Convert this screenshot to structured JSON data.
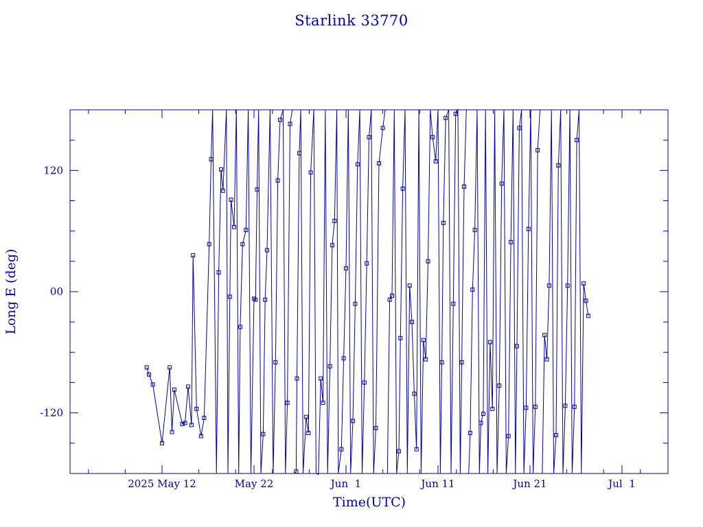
{
  "chart_data": {
    "type": "line",
    "title": "Starlink 33770",
    "xlabel": "Time(UTC)",
    "ylabel": "Long E (deg)",
    "color": "#0000a0",
    "marker": "square",
    "grid": false,
    "xlim": [
      "2025-05-02",
      "2025-07-06"
    ],
    "ylim": [
      -180,
      180
    ],
    "xticks": [
      {
        "date": "2025-05-12",
        "label": "2025 May 12"
      },
      {
        "date": "2025-05-22",
        "label": "May 22"
      },
      {
        "date": "2025-06-01",
        "label": "Jun  1"
      },
      {
        "date": "2025-06-11",
        "label": "Jun 11"
      },
      {
        "date": "2025-06-21",
        "label": "Jun 21"
      },
      {
        "date": "2025-07-01",
        "label": "Jul  1"
      }
    ],
    "yticks": [
      {
        "value": 120,
        "label": "120"
      },
      {
        "value": 0,
        "label": "00"
      },
      {
        "value": -120,
        "label": "-120"
      }
    ],
    "series": [
      {
        "points": [
          [
            "2025-05-10T08:00",
            -75
          ],
          [
            "2025-05-10T14:00",
            -82
          ],
          [
            "2025-05-11T00:00",
            -92
          ],
          [
            "2025-05-12T00:00",
            -150
          ],
          [
            "2025-05-12T20:00",
            -75
          ],
          [
            "2025-05-13T02:00",
            -139
          ],
          [
            "2025-05-13T08:00",
            -97
          ],
          [
            "2025-05-14T05:00",
            -131
          ],
          [
            "2025-05-14T12:00",
            -130
          ],
          [
            "2025-05-14T20:00",
            -94
          ],
          [
            "2025-05-15T05:00",
            -132
          ],
          [
            "2025-05-15T09:00",
            36
          ],
          [
            "2025-05-15T18:00",
            -116
          ],
          [
            "2025-05-16T06:00",
            -143
          ],
          [
            "2025-05-16T14:00",
            -125
          ],
          [
            "2025-05-17T03:00",
            47
          ],
          [
            "2025-05-17T08:00",
            131
          ],
          [
            "2025-05-17T12:00",
            180
          ],
          [
            "2025-05-17T22:00",
            -180
          ],
          [
            "2025-05-18T04:00",
            19
          ],
          [
            "2025-05-18T10:00",
            121
          ],
          [
            "2025-05-18T15:00",
            100
          ],
          [
            "2025-05-19T00:00",
            180
          ],
          [
            "2025-05-19T04:00",
            -180
          ],
          [
            "2025-05-19T09:00",
            -5
          ],
          [
            "2025-05-19T12:00",
            91
          ],
          [
            "2025-05-19T20:00",
            64
          ],
          [
            "2025-05-20T02:00",
            180
          ],
          [
            "2025-05-20T08:00",
            -180
          ],
          [
            "2025-05-20T12:00",
            -35
          ],
          [
            "2025-05-20T18:00",
            47
          ],
          [
            "2025-05-21T03:00",
            61
          ],
          [
            "2025-05-21T09:00",
            180
          ],
          [
            "2025-05-21T16:00",
            -180
          ],
          [
            "2025-05-22T00:00",
            -7
          ],
          [
            "2025-05-22T04:00",
            -8
          ],
          [
            "2025-05-22T08:00",
            101
          ],
          [
            "2025-05-22T12:00",
            180
          ],
          [
            "2025-05-22T18:00",
            -180
          ],
          [
            "2025-05-23T00:00",
            -141
          ],
          [
            "2025-05-23T05:00",
            -8
          ],
          [
            "2025-05-23T10:00",
            41
          ],
          [
            "2025-05-23T18:00",
            180
          ],
          [
            "2025-05-24T02:00",
            -180
          ],
          [
            "2025-05-24T08:00",
            -70
          ],
          [
            "2025-05-24T14:00",
            110
          ],
          [
            "2025-05-24T20:00",
            170
          ],
          [
            "2025-05-25T04:00",
            180
          ],
          [
            "2025-05-25T10:00",
            -180
          ],
          [
            "2025-05-25T15:00",
            -110
          ],
          [
            "2025-05-25T22:00",
            166
          ],
          [
            "2025-05-26T04:00",
            180
          ]
        ]
      },
      {
        "points": [
          [
            "2025-05-26T08:00",
            -180
          ],
          [
            "2025-05-26T14:00",
            -178
          ],
          [
            "2025-05-26T16:00",
            -86
          ],
          [
            "2025-05-26T22:00",
            137
          ],
          [
            "2025-05-27T02:00",
            180
          ],
          [
            "2025-05-27T08:00",
            -180
          ],
          [
            "2025-05-27T16:00",
            -124
          ],
          [
            "2025-05-27T22:00",
            -140
          ],
          [
            "2025-05-28T04:00",
            118
          ],
          [
            "2025-05-28T12:00",
            180
          ],
          [
            "2025-05-28T18:00",
            -180
          ],
          [
            "2025-05-29T00:00",
            -181
          ],
          [
            "2025-05-29T06:00",
            -86
          ],
          [
            "2025-05-29T12:00",
            -110
          ],
          [
            "2025-05-29T18:00",
            180
          ],
          [
            "2025-05-30T00:00",
            -180
          ],
          [
            "2025-05-30T06:00",
            -74
          ],
          [
            "2025-05-30T12:00",
            46
          ],
          [
            "2025-05-30T18:00",
            70
          ],
          [
            "2025-05-31T00:00",
            180
          ],
          [
            "2025-05-31T04:00",
            -180
          ],
          [
            "2025-05-31T12:00",
            -156
          ],
          [
            "2025-05-31T18:00",
            -66
          ],
          [
            "2025-06-01T00:00",
            23
          ],
          [
            "2025-06-01T06:00",
            180
          ],
          [
            "2025-06-01T12:00",
            -180
          ],
          [
            "2025-06-01T18:00",
            -128
          ],
          [
            "2025-06-02T00:00",
            -12
          ],
          [
            "2025-06-02T06:00",
            126
          ],
          [
            "2025-06-02T12:00",
            180
          ],
          [
            "2025-06-02T18:00",
            -180
          ],
          [
            "2025-06-03T00:00",
            -90
          ],
          [
            "2025-06-03T06:00",
            28
          ],
          [
            "2025-06-03T12:00",
            153
          ],
          [
            "2025-06-03T18:00",
            180
          ],
          [
            "2025-06-04T00:00",
            -180
          ],
          [
            "2025-06-04T06:00",
            -135
          ],
          [
            "2025-06-04T14:00",
            127
          ],
          [
            "2025-06-05T00:00",
            162
          ],
          [
            "2025-06-05T06:00",
            180
          ]
        ]
      },
      {
        "points": [
          [
            "2025-06-05T12:00",
            -180
          ],
          [
            "2025-06-05T18:00",
            -8
          ],
          [
            "2025-06-06T00:00",
            -4
          ],
          [
            "2025-06-06T06:00",
            180
          ],
          [
            "2025-06-06T12:00",
            -180
          ],
          [
            "2025-06-06T18:00",
            -158
          ],
          [
            "2025-06-06T22:00",
            -46
          ],
          [
            "2025-06-07T04:00",
            102
          ],
          [
            "2025-06-07T10:00",
            180
          ],
          [
            "2025-06-07T16:00",
            -180
          ],
          [
            "2025-06-07T22:00",
            6
          ],
          [
            "2025-06-08T04:00",
            -30
          ],
          [
            "2025-06-08T10:00",
            -101
          ],
          [
            "2025-06-08T16:00",
            -156
          ],
          [
            "2025-06-08T22:00",
            180
          ],
          [
            "2025-06-09T04:00",
            -180
          ],
          [
            "2025-06-09T10:00",
            -48
          ],
          [
            "2025-06-09T16:00",
            -67
          ],
          [
            "2025-06-09T22:00",
            30
          ],
          [
            "2025-06-10T04:00",
            180
          ],
          [
            "2025-06-10T10:00",
            153
          ],
          [
            "2025-06-10T18:00",
            129
          ],
          [
            "2025-06-11T00:00",
            180
          ],
          [
            "2025-06-11T06:00",
            -180
          ],
          [
            "2025-06-11T10:00",
            -70
          ],
          [
            "2025-06-11T14:00",
            68
          ],
          [
            "2025-06-11T20:00",
            172
          ],
          [
            "2025-06-12T04:00",
            180
          ],
          [
            "2025-06-12T10:00",
            -180
          ],
          [
            "2025-06-12T16:00",
            -12
          ],
          [
            "2025-06-12T22:00",
            176
          ],
          [
            "2025-06-13T04:00",
            180
          ],
          [
            "2025-06-13T10:00",
            -180
          ],
          [
            "2025-06-13T14:00",
            -70
          ],
          [
            "2025-06-13T20:00",
            104
          ],
          [
            "2025-06-14T02:00",
            180
          ]
        ]
      },
      {
        "points": [
          [
            "2025-06-14T08:00",
            -180
          ],
          [
            "2025-06-14T12:00",
            -140
          ],
          [
            "2025-06-14T18:00",
            2
          ],
          [
            "2025-06-15T00:00",
            61
          ],
          [
            "2025-06-15T06:00",
            180
          ],
          [
            "2025-06-15T12:00",
            -180
          ],
          [
            "2025-06-15T16:00",
            -130
          ],
          [
            "2025-06-15T22:00",
            -121
          ],
          [
            "2025-06-16T04:00",
            180
          ],
          [
            "2025-06-16T10:00",
            -180
          ],
          [
            "2025-06-16T16:00",
            -50
          ],
          [
            "2025-06-16T22:00",
            -116
          ],
          [
            "2025-06-17T04:00",
            180
          ],
          [
            "2025-06-17T10:00",
            -180
          ],
          [
            "2025-06-17T16:00",
            -93
          ],
          [
            "2025-06-17T22:00",
            107
          ],
          [
            "2025-06-18T04:00",
            180
          ],
          [
            "2025-06-18T10:00",
            -180
          ],
          [
            "2025-06-18T16:00",
            -143
          ],
          [
            "2025-06-18T22:00",
            49
          ],
          [
            "2025-06-19T04:00",
            180
          ],
          [
            "2025-06-19T10:00",
            -180
          ],
          [
            "2025-06-19T14:00",
            -54
          ],
          [
            "2025-06-19T20:00",
            162
          ],
          [
            "2025-06-20T02:00",
            180
          ],
          [
            "2025-06-20T08:00",
            -180
          ],
          [
            "2025-06-20T14:00",
            -115
          ],
          [
            "2025-06-20T20:00",
            62
          ],
          [
            "2025-06-21T02:00",
            180
          ],
          [
            "2025-06-21T08:00",
            -180
          ],
          [
            "2025-06-21T14:00",
            -114
          ],
          [
            "2025-06-21T20:00",
            140
          ],
          [
            "2025-06-22T02:00",
            180
          ]
        ]
      },
      {
        "points": [
          [
            "2025-06-22T08:00",
            -180
          ],
          [
            "2025-06-22T14:00",
            -43
          ],
          [
            "2025-06-22T20:00",
            -67
          ],
          [
            "2025-06-23T02:00",
            6
          ],
          [
            "2025-06-23T08:00",
            180
          ],
          [
            "2025-06-23T14:00",
            -180
          ],
          [
            "2025-06-23T20:00",
            -142
          ],
          [
            "2025-06-24T02:00",
            125
          ],
          [
            "2025-06-24T08:00",
            180
          ],
          [
            "2025-06-24T14:00",
            -180
          ],
          [
            "2025-06-24T20:00",
            -113
          ],
          [
            "2025-06-25T02:00",
            6
          ],
          [
            "2025-06-25T08:00",
            180
          ],
          [
            "2025-06-25T14:00",
            -180
          ],
          [
            "2025-06-25T20:00",
            -114
          ],
          [
            "2025-06-26T02:00",
            150
          ],
          [
            "2025-06-26T08:00",
            180
          ],
          [
            "2025-06-26T14:00",
            -180
          ],
          [
            "2025-06-26T20:00",
            8
          ],
          [
            "2025-06-27T02:00",
            -9
          ],
          [
            "2025-06-27T08:00",
            -24
          ]
        ]
      }
    ]
  }
}
